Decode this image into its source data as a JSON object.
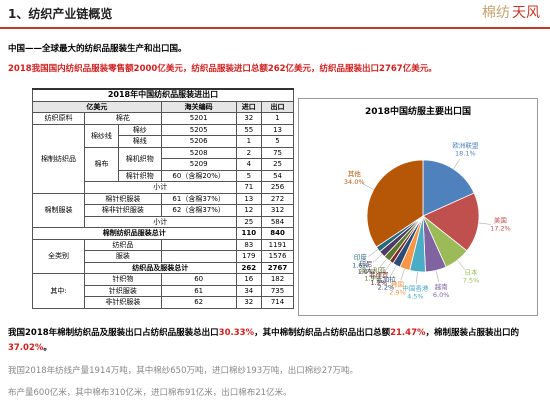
{
  "header": {
    "title": "1、纺织产业链概览",
    "logo": [
      "棉纺",
      "天风"
    ]
  },
  "intro": "中国——全球最大的纺织品服装生产和出口国。",
  "highlight": "2018我国国内纺织品服装零售额2000亿美元，纺织品服装进口总额262亿美元，纺织品服装出口2767亿美元。",
  "table": {
    "title": "2018年中国纺织品服装进出口",
    "header": [
      "亿美元",
      "海关编码",
      "进口",
      "出口"
    ],
    "rows": [
      [
        "纺织原料",
        "棉花",
        "5201",
        "32",
        "1"
      ],
      [
        "棉制纺织品",
        "棉纱线",
        "棉纱",
        "5205",
        "55",
        "13"
      ],
      [
        "棉线",
        "5206",
        "1",
        "5"
      ],
      [
        "棉布",
        "棉机织物",
        "5208",
        "2",
        "75"
      ],
      [
        "5209",
        "4",
        "25"
      ],
      [
        "棉针织物",
        "60（含棉20%）",
        "5",
        "54"
      ],
      [
        "小计",
        "71",
        "256"
      ],
      [
        "棉制服装",
        "棉针织服装",
        "61（含棉37%）",
        "13",
        "272"
      ],
      [
        "棉非针织服装",
        "62（含棉37%）",
        "12",
        "312"
      ],
      [
        "小计",
        "25",
        "584"
      ],
      [
        "棉制纺织品服装总计",
        "110",
        "840"
      ],
      [
        "全类别",
        "纺织品",
        "83",
        "1191"
      ],
      [
        "服装",
        "179",
        "1576"
      ],
      [
        "纺织品及服装总计",
        "262",
        "2767"
      ],
      [
        "其中:",
        "针织物",
        "60",
        "16",
        "182"
      ],
      [
        "针织服装",
        "61",
        "34",
        "735"
      ],
      [
        "非针织服装",
        "62",
        "32",
        "714"
      ]
    ]
  },
  "chart_data": {
    "type": "pie",
    "title": "2018中国纺服主要出口国",
    "categories": [
      "欧洲联盟",
      "美国",
      "日本",
      "越南",
      "中国香港",
      "韩国",
      "孟加拉",
      "菲律宾",
      "澳大利亚",
      "印尼",
      "印度",
      "其他"
    ],
    "values": [
      18.1,
      17.2,
      7.5,
      6.0,
      4.5,
      2.9,
      2.2,
      1.2,
      1.9,
      1.9,
      1.6,
      34.0
    ],
    "value_labels": [
      "18.1%",
      "17.2%",
      "7.5%",
      "6.0%",
      "4.5%",
      "2.9%",
      "2.2%",
      "1.2%",
      "1.9%",
      "1.9%",
      "1.6%",
      "34.0%"
    ],
    "colors": [
      "#4f81bd",
      "#c0504d",
      "#9bbb59",
      "#8064a2",
      "#4bacc6",
      "#f79646",
      "#2c4d75",
      "#772c2a",
      "#5f7530",
      "#4d3b62",
      "#276a7c",
      "#b65708"
    ]
  },
  "summary": [
    "我国2018年棉制纺织品及服装出口占纺织品服装总出口",
    "30.33%",
    "，其中棉制纺织品占纺织品出口总额",
    "21.47%",
    "，棉制服装占服装出口的",
    "37.02%",
    "。"
  ],
  "notes": [
    "我国2018年纺线产量1914万吨，其中棉纱650万吨，进口棉纱193万吨，出口棉纱27万吨。",
    "布产量600亿米，其中棉布310亿米，进口棉布91亿米，出口棉布21亿米。"
  ]
}
